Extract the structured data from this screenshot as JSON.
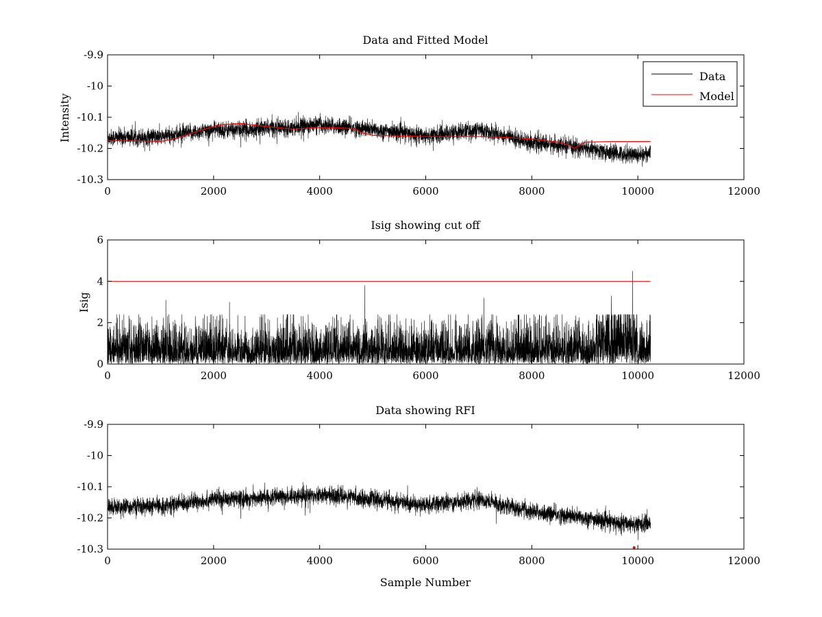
{
  "figure": {
    "background": "#ffffff",
    "data_color": "#000000",
    "model_color": "#ff0000"
  },
  "chart_data": [
    {
      "type": "line",
      "title": "Data and Fitted Model",
      "xlabel": "",
      "ylabel": "Intensity",
      "xlim": [
        0,
        12000
      ],
      "ylim": [
        -10.3,
        -9.9
      ],
      "xticks": [
        "0",
        "2000",
        "4000",
        "6000",
        "8000",
        "10000",
        "12000"
      ],
      "yticks": [
        "-9.9",
        "-10",
        "-10.1",
        "-10.2",
        "-10.3"
      ],
      "ytick_values": [
        -9.9,
        -10.0,
        -10.1,
        -10.2,
        -10.3
      ],
      "legend_position": "top-right",
      "grid": false,
      "series": [
        {
          "name": "Data",
          "kind": "noisy-trace",
          "color": "#000000",
          "x_range": [
            0,
            10240
          ],
          "baseline_x": [
            0,
            1000,
            2000,
            2500,
            3000,
            4000,
            4700,
            5000,
            6000,
            7000,
            7500,
            8000,
            8500,
            9000,
            9500,
            10000,
            10240
          ],
          "baseline_y": [
            -10.165,
            -10.163,
            -10.14,
            -10.14,
            -10.135,
            -10.125,
            -10.135,
            -10.14,
            -10.16,
            -10.14,
            -10.16,
            -10.18,
            -10.19,
            -10.2,
            -10.215,
            -10.22,
            -10.215
          ],
          "noise_amplitude": 0.03
        },
        {
          "name": "Model",
          "kind": "smooth",
          "color": "#ff0000",
          "x": [
            0,
            500,
            1000,
            1300,
            1700,
            2100,
            2500,
            3000,
            3500,
            4000,
            4500,
            4700,
            4800,
            5000,
            6000,
            7000,
            7500,
            8000,
            8500,
            8700,
            8800,
            9000,
            9500,
            10000,
            10240
          ],
          "y": [
            -10.175,
            -10.175,
            -10.178,
            -10.168,
            -10.145,
            -10.125,
            -10.12,
            -10.13,
            -10.138,
            -10.133,
            -10.135,
            -10.14,
            -10.15,
            -10.158,
            -10.162,
            -10.162,
            -10.165,
            -10.17,
            -10.18,
            -10.19,
            -10.2,
            -10.18,
            -10.178,
            -10.178,
            -10.178
          ]
        }
      ]
    },
    {
      "type": "line",
      "title": "Isig showing cut off",
      "xlabel": "",
      "ylabel": "Isig",
      "xlim": [
        0,
        12000
      ],
      "ylim": [
        0,
        6
      ],
      "xticks": [
        "0",
        "2000",
        "4000",
        "6000",
        "8000",
        "10000",
        "12000"
      ],
      "yticks": [
        "6",
        "4",
        "2",
        "0"
      ],
      "ytick_values": [
        6,
        4,
        2,
        0
      ],
      "grid": false,
      "series": [
        {
          "kind": "abs-noise",
          "color": "#000000",
          "x_range": [
            0,
            10240
          ],
          "typical_max": 2.4,
          "peaks": [
            [
              1100,
              3.1
            ],
            [
              2300,
              3.0
            ],
            [
              4850,
              3.8
            ],
            [
              7100,
              3.2
            ],
            [
              9500,
              3.3
            ],
            [
              9900,
              4.5
            ]
          ]
        },
        {
          "kind": "threshold",
          "color": "#ff0000",
          "x": [
            0,
            10240
          ],
          "y": [
            4,
            4
          ]
        }
      ]
    },
    {
      "type": "line",
      "title": "Data showing RFI",
      "xlabel": "Sample Number",
      "ylabel": "",
      "xlim": [
        0,
        12000
      ],
      "ylim": [
        -10.3,
        -9.9
      ],
      "xticks": [
        "0",
        "2000",
        "4000",
        "6000",
        "8000",
        "10000",
        "12000"
      ],
      "yticks": [
        "-9.9",
        "-10",
        "-10.1",
        "-10.2",
        "-10.3"
      ],
      "ytick_values": [
        -9.9,
        -10.0,
        -10.1,
        -10.2,
        -10.3
      ],
      "grid": false,
      "series": [
        {
          "kind": "noisy-trace",
          "color": "#000000",
          "x_range": [
            0,
            10240
          ],
          "baseline_x": [
            0,
            1000,
            2000,
            2500,
            3000,
            4000,
            4700,
            5000,
            6000,
            7000,
            7500,
            8000,
            8500,
            9000,
            9500,
            10000,
            10240
          ],
          "baseline_y": [
            -10.165,
            -10.163,
            -10.14,
            -10.14,
            -10.135,
            -10.125,
            -10.135,
            -10.14,
            -10.16,
            -10.14,
            -10.16,
            -10.18,
            -10.19,
            -10.2,
            -10.215,
            -10.22,
            -10.215
          ],
          "noise_amplitude": 0.03
        },
        {
          "kind": "rfi-markers",
          "color": "#ff0000",
          "x": [
            9930
          ],
          "y": [
            -10.295
          ]
        }
      ]
    }
  ]
}
